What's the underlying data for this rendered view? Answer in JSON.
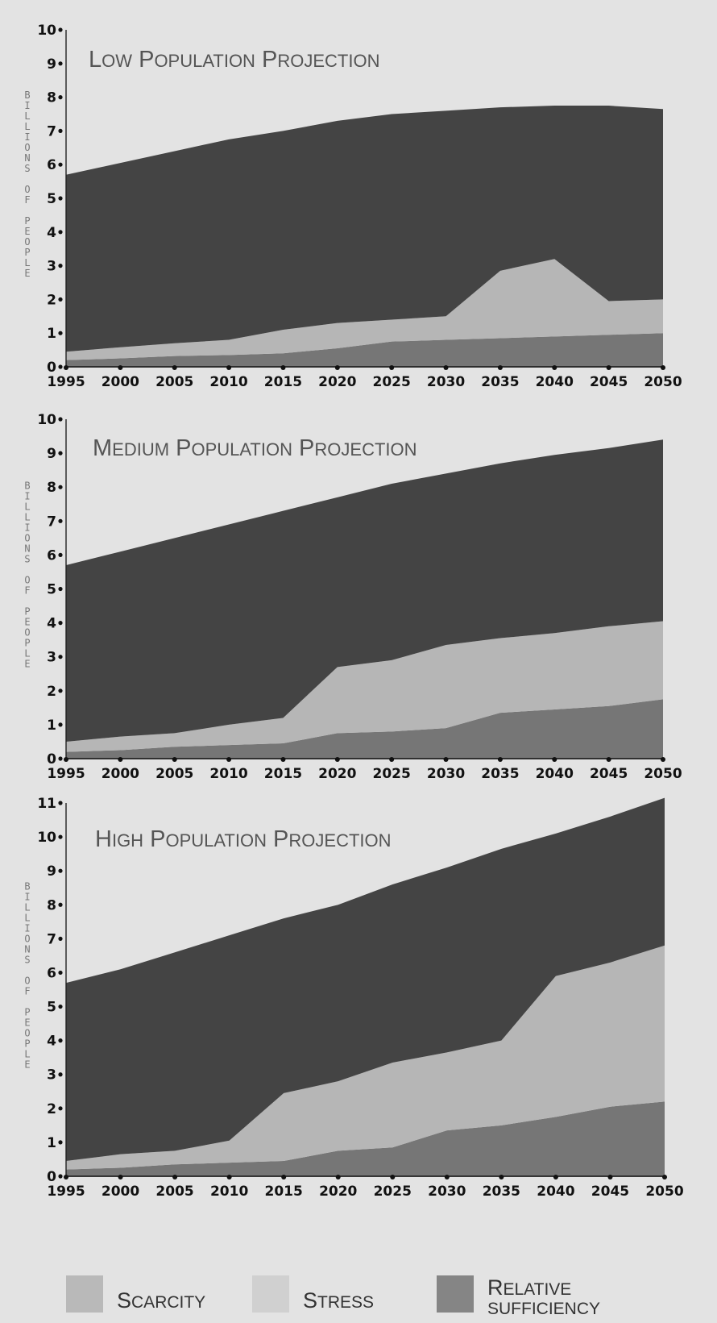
{
  "chart_data": [
    {
      "type": "area",
      "title": "Low Population Projection",
      "ylabel": "Billions of People",
      "x": [
        1995,
        2000,
        2005,
        2010,
        2015,
        2020,
        2025,
        2030,
        2035,
        2040,
        2045,
        2050
      ],
      "ylim": [
        0,
        10
      ],
      "yticks": [
        0,
        1,
        2,
        3,
        4,
        5,
        6,
        7,
        8,
        9,
        10
      ],
      "series": [
        {
          "name": "Relative sufficiency",
          "color": "#767676",
          "values": [
            0.2,
            0.25,
            0.32,
            0.35,
            0.4,
            0.55,
            0.75,
            0.8,
            0.85,
            0.9,
            0.95,
            1.0
          ]
        },
        {
          "name": "Stress",
          "color": "#b6b6b6",
          "values": [
            0.25,
            0.33,
            0.38,
            0.45,
            0.7,
            0.75,
            0.65,
            0.7,
            2.0,
            2.3,
            1.0,
            1.0
          ]
        },
        {
          "name": "Scarcity",
          "color": "#444444",
          "values": [
            5.25,
            5.47,
            5.7,
            5.95,
            5.9,
            6.0,
            6.1,
            6.1,
            4.85,
            4.55,
            5.8,
            5.65
          ]
        }
      ]
    },
    {
      "type": "area",
      "title": "Medium Population Projection",
      "ylabel": "Billions of People",
      "x": [
        1995,
        2000,
        2005,
        2010,
        2015,
        2020,
        2025,
        2030,
        2035,
        2040,
        2045,
        2050
      ],
      "ylim": [
        0,
        10
      ],
      "yticks": [
        0,
        1,
        2,
        3,
        4,
        5,
        6,
        7,
        8,
        9,
        10
      ],
      "series": [
        {
          "name": "Relative sufficiency",
          "color": "#767676",
          "values": [
            0.2,
            0.25,
            0.35,
            0.4,
            0.45,
            0.75,
            0.8,
            0.9,
            1.35,
            1.45,
            1.55,
            1.75
          ]
        },
        {
          "name": "Stress",
          "color": "#b6b6b6",
          "values": [
            0.3,
            0.4,
            0.4,
            0.6,
            0.75,
            1.95,
            2.1,
            2.45,
            2.2,
            2.25,
            2.35,
            2.3
          ]
        },
        {
          "name": "Scarcity",
          "color": "#444444",
          "values": [
            5.2,
            5.45,
            5.75,
            5.9,
            6.1,
            5.0,
            5.2,
            5.05,
            5.15,
            5.25,
            5.25,
            5.35
          ]
        }
      ]
    },
    {
      "type": "area",
      "title": "High Population Projection",
      "ylabel": "Billions of People",
      "x": [
        1995,
        2000,
        2005,
        2010,
        2015,
        2020,
        2025,
        2030,
        2035,
        2040,
        2045,
        2050
      ],
      "ylim": [
        0,
        11
      ],
      "yticks": [
        0,
        1,
        2,
        3,
        4,
        5,
        6,
        7,
        8,
        9,
        10,
        11
      ],
      "series": [
        {
          "name": "Relative sufficiency",
          "color": "#767676",
          "values": [
            0.2,
            0.25,
            0.35,
            0.4,
            0.45,
            0.75,
            0.85,
            1.35,
            1.5,
            1.75,
            2.05,
            2.2
          ]
        },
        {
          "name": "Stress",
          "color": "#b6b6b6",
          "values": [
            0.25,
            0.4,
            0.4,
            0.65,
            2.0,
            2.05,
            2.5,
            2.3,
            2.5,
            4.15,
            4.25,
            4.6
          ]
        },
        {
          "name": "Scarcity",
          "color": "#444444",
          "values": [
            5.25,
            5.45,
            5.85,
            6.05,
            5.15,
            5.2,
            5.25,
            5.45,
            5.65,
            4.2,
            4.3,
            4.35
          ]
        }
      ]
    }
  ],
  "legend": [
    {
      "label": "Scarcity",
      "color": "#b9b9b9"
    },
    {
      "label": "Stress",
      "color": "#d0d0d0"
    },
    {
      "label": "Relative sufficiency",
      "color": "#858585"
    }
  ]
}
